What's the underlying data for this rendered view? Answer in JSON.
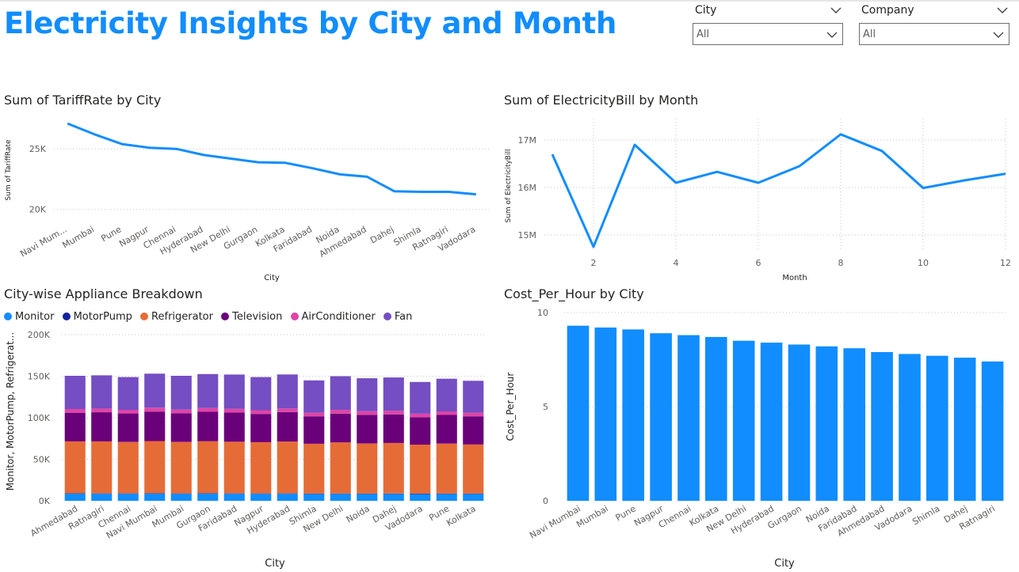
{
  "title": "Electricity Insights by City and Month",
  "slicers": [
    {
      "label": "City",
      "value": "All"
    },
    {
      "label": "Company",
      "value": "All"
    }
  ],
  "colors": {
    "accent": "#118dff",
    "Monitor": "#118dff",
    "MotorPump": "#12239e",
    "Refrigerator": "#e66c37",
    "Television": "#6b007b",
    "AirConditioner": "#e044a7",
    "Fan": "#744ec2"
  },
  "chart_data": [
    {
      "id": "tariff",
      "type": "line",
      "title": "Sum of TariffRate by City",
      "xlabel": "City",
      "ylabel": "Sum of TariffRate",
      "ylim": [
        19000,
        27500
      ],
      "yticks": [
        {
          "value": 20000,
          "label": "20K"
        },
        {
          "value": 25000,
          "label": "25K"
        }
      ],
      "categories": [
        "Navi Mum...",
        "Mumbai",
        "Pune",
        "Nagpur",
        "Chennai",
        "Hyderabad",
        "New Delhi",
        "Gurgaon",
        "Kolkata",
        "Faridabad",
        "Noida",
        "Ahmedabad",
        "Dahej",
        "Shimla",
        "Ratnagiri",
        "Vadodara"
      ],
      "values": [
        27100,
        26200,
        25400,
        25100,
        25000,
        24500,
        24200,
        23900,
        23850,
        23400,
        22900,
        22700,
        21500,
        21450,
        21450,
        21250
      ]
    },
    {
      "id": "bill",
      "type": "line",
      "title": "Sum of ElectricityBill by Month",
      "xlabel": "Month",
      "ylabel": "Sum of ElectricityBill",
      "ylim": [
        14700000,
        17450000
      ],
      "yticks": [
        {
          "value": 15000000,
          "label": "15M"
        },
        {
          "value": 16000000,
          "label": "16M"
        },
        {
          "value": 17000000,
          "label": "17M"
        }
      ],
      "xticks": [
        2,
        4,
        6,
        8,
        10,
        12
      ],
      "x": [
        1,
        2,
        3,
        4,
        5,
        6,
        7,
        8,
        9,
        10,
        11,
        12
      ],
      "values": [
        16700000,
        14750000,
        16900000,
        16100000,
        16330000,
        16100000,
        16450000,
        17120000,
        16770000,
        15990000,
        16150000,
        16290000
      ]
    },
    {
      "id": "appliance",
      "type": "bar",
      "stacked": true,
      "title": "City-wise Appliance Breakdown",
      "xlabel": "City",
      "ylabel": "Monitor, MotorPump, Refrigerat...",
      "ylim": [
        0,
        200000
      ],
      "yticks": [
        {
          "value": 0,
          "label": "0K"
        },
        {
          "value": 50000,
          "label": "50K"
        },
        {
          "value": 100000,
          "label": "100K"
        },
        {
          "value": 150000,
          "label": "150K"
        },
        {
          "value": 200000,
          "label": "200K"
        }
      ],
      "legend": "top-left",
      "categories": [
        "Ahmedabad",
        "Ratnagiri",
        "Chennai",
        "Navi Mumbai",
        "Mumbai",
        "Gurgaon",
        "Faridabad",
        "Nagpur",
        "Hyderabad",
        "Shimla",
        "New Delhi",
        "Noida",
        "Dahej",
        "Vadodara",
        "Pune",
        "Kolkata"
      ],
      "series": [
        {
          "name": "Monitor",
          "values": [
            8500,
            8400,
            8400,
            8500,
            8400,
            8500,
            8400,
            8400,
            8400,
            8200,
            8300,
            8200,
            8200,
            8100,
            8200,
            8200
          ]
        },
        {
          "name": "MotorPump",
          "values": [
            500,
            500,
            500,
            500,
            500,
            500,
            500,
            500,
            500,
            500,
            500,
            500,
            500,
            500,
            500,
            500
          ]
        },
        {
          "name": "Refrigerator",
          "values": [
            62500,
            62700,
            61900,
            62900,
            61900,
            62700,
            62300,
            61700,
            62600,
            60000,
            61500,
            60300,
            60900,
            59000,
            60100,
            59100
          ]
        },
        {
          "name": "Television",
          "values": [
            34500,
            35000,
            34300,
            35500,
            34600,
            35400,
            35100,
            34000,
            35200,
            33000,
            34700,
            34500,
            34400,
            33000,
            34500,
            33900
          ]
        },
        {
          "name": "AirConditioner",
          "values": [
            4500,
            4400,
            4400,
            4600,
            4400,
            4500,
            4400,
            4400,
            4400,
            4300,
            4400,
            4300,
            4300,
            4200,
            4300,
            4300
          ]
        },
        {
          "name": "Fan",
          "values": [
            40000,
            40000,
            39500,
            41000,
            40700,
            41000,
            41300,
            40000,
            41000,
            39000,
            40600,
            39700,
            40200,
            38200,
            39400,
            38500
          ]
        }
      ]
    },
    {
      "id": "cost",
      "type": "bar",
      "title": "Cost_Per_Hour by City",
      "xlabel": "City",
      "ylabel": "Cost_Per_Hour",
      "ylim": [
        0,
        10
      ],
      "yticks": [
        {
          "value": 0,
          "label": "0"
        },
        {
          "value": 5,
          "label": "5"
        },
        {
          "value": 10,
          "label": "10"
        }
      ],
      "categories": [
        "Navi Mumbai",
        "Mumbai",
        "Pune",
        "Nagpur",
        "Chennai",
        "Kolkata",
        "New Delhi",
        "Hyderabad",
        "Gurgaon",
        "Noida",
        "Faridabad",
        "Ahmedabad",
        "Vadodara",
        "Shimla",
        "Dahej",
        "Ratnagiri"
      ],
      "values": [
        9.3,
        9.2,
        9.1,
        8.9,
        8.8,
        8.7,
        8.5,
        8.4,
        8.3,
        8.2,
        8.1,
        7.9,
        7.8,
        7.7,
        7.6,
        7.4
      ]
    }
  ]
}
